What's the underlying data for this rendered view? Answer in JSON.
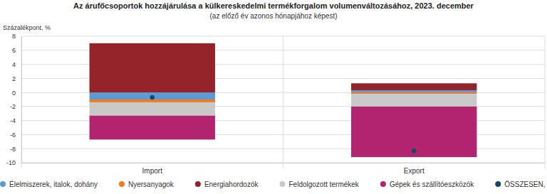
{
  "chart_data": {
    "type": "bar",
    "title": "Az árufőcsoportok hozzájárulása a külkereskedelmi termékforgalom volumenváltozásához, 2023. december",
    "subtitle": "(az előző év azonos hónapjához képest)",
    "y_label": "Százalékpont, %",
    "categories": [
      "Import",
      "Export"
    ],
    "stacked": true,
    "legend": "bottom",
    "grid": true,
    "ylim": [
      -10,
      8
    ],
    "yticks": [
      -10,
      -8,
      -6,
      -4,
      -2,
      0,
      2,
      4,
      6,
      8
    ],
    "series": [
      {
        "name": "Élelmiszerek, italok, dohány",
        "color": "#5b9bd5",
        "values": [
          -1.0,
          0.3
        ]
      },
      {
        "name": "Nyersanyagok",
        "color": "#ee7d1f",
        "values": [
          -0.4,
          -0.2
        ]
      },
      {
        "name": "Energiahordozók",
        "color": "#94232a",
        "values": [
          7.0,
          1.0
        ]
      },
      {
        "name": "Feldolgozott termékek",
        "color": "#c9c9c9",
        "values": [
          -1.9,
          -1.8
        ]
      },
      {
        "name": "Gépek és szállítóeszközök",
        "color": "#b3246f",
        "values": [
          -3.4,
          -7.2
        ]
      },
      {
        "name": "ÖSSZESEN, %",
        "color": "#0e4a67",
        "type": "scatter",
        "marker": "circle",
        "values": [
          -0.7,
          -8.3
        ]
      }
    ]
  }
}
